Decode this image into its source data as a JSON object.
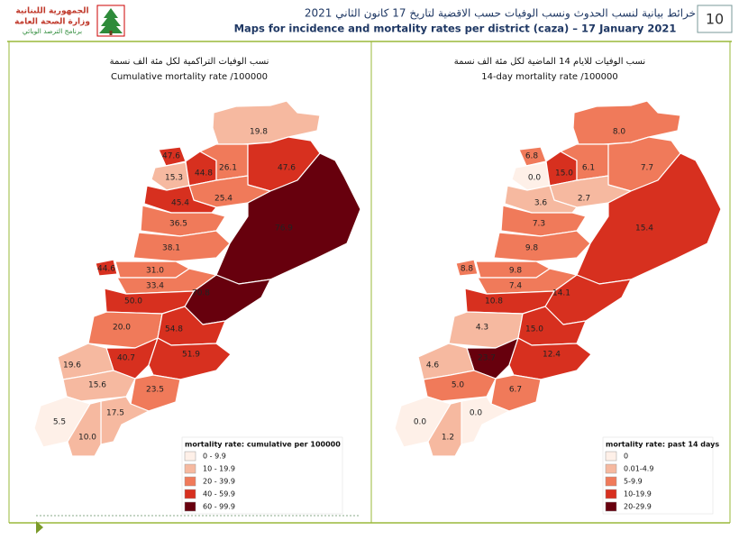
{
  "header": {
    "logo": [
      "الجمهورية اللبنانية",
      "وزارة الصحة العامة",
      "برنامج الترصد الوبائي"
    ],
    "title_ar": "خرائط بيانية لنسب الحدوث ونسب الوفيات حسب الاقضية لتاريخ 17 كانون الثاني 2021",
    "title_en": "Maps for incidence and mortality rates per district (caza) – 17 January 2021",
    "page_number": "10"
  },
  "maps": [
    {
      "title_ar": "نسب الوفيات التراكمية لكل مئة الف نسمة",
      "title_en": "Cumulative mortality rate /100000",
      "districts": [
        {
          "label": "19.8",
          "color": "#f6b9a0"
        },
        {
          "label": "47.6",
          "color": "#d7301f"
        },
        {
          "label": "15.3",
          "color": "#f6b9a0"
        },
        {
          "label": "44.8",
          "color": "#d7301f"
        },
        {
          "label": "26.1",
          "color": "#f07a5a"
        },
        {
          "label": "47.6",
          "color": "#d7301f"
        },
        {
          "label": "25.4",
          "color": "#f07a5a"
        },
        {
          "label": "45.4",
          "color": "#d7301f"
        },
        {
          "label": "76.9",
          "color": "#67000d"
        },
        {
          "label": "36.5",
          "color": "#f07a5a"
        },
        {
          "label": "38.1",
          "color": "#f07a5a"
        },
        {
          "label": "44.6",
          "color": "#d7301f"
        },
        {
          "label": "31.0",
          "color": "#f07a5a"
        },
        {
          "label": "33.4",
          "color": "#f07a5a"
        },
        {
          "label": "70.8",
          "color": "#67000d"
        },
        {
          "label": "50.0",
          "color": "#d7301f"
        },
        {
          "label": "20.0",
          "color": "#f07a5a"
        },
        {
          "label": "54.8",
          "color": "#d7301f"
        },
        {
          "label": "40.7",
          "color": "#d7301f"
        },
        {
          "label": "51.9",
          "color": "#d7301f"
        },
        {
          "label": "19.6",
          "color": "#f6b9a0"
        },
        {
          "label": "15.6",
          "color": "#f6b9a0"
        },
        {
          "label": "23.5",
          "color": "#f07a5a"
        },
        {
          "label": "17.5",
          "color": "#f6b9a0"
        },
        {
          "label": "5.5",
          "color": "#fef0e8"
        },
        {
          "label": "10.0",
          "color": "#f6b9a0"
        }
      ],
      "legend": {
        "title": "mortality rate: cumulative per 100000",
        "items": [
          {
            "label": "0 - 9.9",
            "color": "#fef0e8"
          },
          {
            "label": "10 - 19.9",
            "color": "#f6b9a0"
          },
          {
            "label": "20 - 39.9",
            "color": "#f07a5a"
          },
          {
            "label": "40 - 59.9",
            "color": "#d7301f"
          },
          {
            "label": "60 - 99.9",
            "color": "#67000d"
          }
        ]
      }
    },
    {
      "title_ar": "نسب الوفيات للايام 14 الماضية لكل مئة الف نسمة",
      "title_en": "14-day mortality rate /100000",
      "districts": [
        {
          "label": "8.0",
          "color": "#f07a5a"
        },
        {
          "label": "6.8",
          "color": "#f07a5a"
        },
        {
          "label": "0.0",
          "color": "#fef0e8"
        },
        {
          "label": "15.0",
          "color": "#d7301f"
        },
        {
          "label": "6.1",
          "color": "#f07a5a"
        },
        {
          "label": "7.7",
          "color": "#f07a5a"
        },
        {
          "label": "2.7",
          "color": "#f6b9a0"
        },
        {
          "label": "3.6",
          "color": "#f6b9a0"
        },
        {
          "label": "15.4",
          "color": "#d7301f"
        },
        {
          "label": "7.3",
          "color": "#f07a5a"
        },
        {
          "label": "9.8",
          "color": "#f07a5a"
        },
        {
          "label": "8.8",
          "color": "#f07a5a"
        },
        {
          "label": "9.8",
          "color": "#f07a5a"
        },
        {
          "label": "7.4",
          "color": "#f07a5a"
        },
        {
          "label": "14.1",
          "color": "#d7301f"
        },
        {
          "label": "10.8",
          "color": "#d7301f"
        },
        {
          "label": "4.3",
          "color": "#f6b9a0"
        },
        {
          "label": "15.0",
          "color": "#d7301f"
        },
        {
          "label": "23.7",
          "color": "#67000d"
        },
        {
          "label": "12.4",
          "color": "#d7301f"
        },
        {
          "label": "4.6",
          "color": "#f6b9a0"
        },
        {
          "label": "5.0",
          "color": "#f07a5a"
        },
        {
          "label": "6.7",
          "color": "#f07a5a"
        },
        {
          "label": "0.0",
          "color": "#fef0e8"
        },
        {
          "label": "0.0",
          "color": "#fef0e8"
        },
        {
          "label": "1.2",
          "color": "#f6b9a0"
        }
      ],
      "legend": {
        "title": "mortality rate: past 14 days",
        "items": [
          {
            "label": "0",
            "color": "#fef0e8"
          },
          {
            "label": "0.01-4.9",
            "color": "#f6b9a0"
          },
          {
            "label": "5-9.9",
            "color": "#f07a5a"
          },
          {
            "label": "10-19.9",
            "color": "#d7301f"
          },
          {
            "label": "20-29.9",
            "color": "#67000d"
          }
        ]
      }
    }
  ]
}
